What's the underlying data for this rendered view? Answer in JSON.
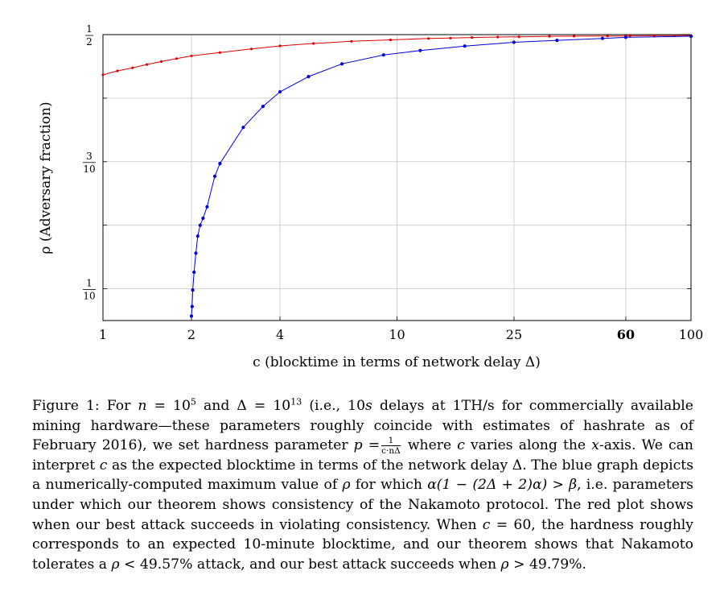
{
  "chart_data": {
    "type": "line",
    "xscale": "log",
    "xlim": [
      1,
      100
    ],
    "ylim": [
      0.05,
      0.5
    ],
    "xlabel": "c (blocktime in terms of network delay Δ)",
    "ylabel": "ρ (Adversary fraction)",
    "xticks": [
      {
        "value": 1,
        "label": "1",
        "bold": false
      },
      {
        "value": 2,
        "label": "2",
        "bold": false
      },
      {
        "value": 4,
        "label": "4",
        "bold": false
      },
      {
        "value": 10,
        "label": "10",
        "bold": false
      },
      {
        "value": 25,
        "label": "25",
        "bold": false
      },
      {
        "value": 60,
        "label": "60",
        "bold": true
      },
      {
        "value": 100,
        "label": "100",
        "bold": false
      }
    ],
    "ygrid": [
      0.1,
      0.2,
      0.3,
      0.4,
      0.5
    ],
    "yticks": [
      {
        "value": 0.5,
        "num": "1",
        "den": "2"
      },
      {
        "value": 0.3,
        "num": "3",
        "den": "10"
      },
      {
        "value": 0.1,
        "num": "1",
        "den": "10"
      }
    ],
    "grid": true,
    "series": [
      {
        "color": "#dd0000",
        "marker_size": 1.6,
        "x": [
          1,
          1.12,
          1.26,
          1.41,
          1.58,
          1.78,
          2.0,
          2.5,
          3.2,
          4.0,
          5.2,
          7.0,
          9.5,
          12.8,
          15.2,
          18.0,
          22.0,
          26.0,
          33.0,
          40.0,
          52.0,
          60.0,
          62.0,
          75.0,
          88.0,
          100.0
        ],
        "y": [
          0.4368,
          0.443,
          0.4478,
          0.453,
          0.4577,
          0.4622,
          0.4665,
          0.4718,
          0.4775,
          0.4822,
          0.486,
          0.4895,
          0.4918,
          0.4939,
          0.4946,
          0.4955,
          0.4962,
          0.4966,
          0.4973,
          0.4976,
          0.4979,
          0.4979,
          0.4981,
          0.4983,
          0.4985,
          0.4987
        ]
      },
      {
        "color": "#0000dd",
        "marker_size": 2.1,
        "x": [
          2.0,
          2.01,
          2.02,
          2.04,
          2.07,
          2.1,
          2.14,
          2.19,
          2.26,
          2.4,
          2.5,
          3.0,
          3.5,
          4.0,
          5.0,
          6.5,
          9.0,
          12.0,
          17.0,
          25.0,
          35.0,
          50.0,
          60.0,
          100.0
        ],
        "y": [
          0.057,
          0.072,
          0.098,
          0.126,
          0.156,
          0.183,
          0.2,
          0.211,
          0.229,
          0.277,
          0.297,
          0.354,
          0.387,
          0.41,
          0.434,
          0.454,
          0.468,
          0.475,
          0.482,
          0.488,
          0.491,
          0.494,
          0.4957,
          0.4975
        ]
      }
    ]
  },
  "caption": {
    "fig_label": "Figure 1:",
    "seg1": "For",
    "n_var": "n",
    "eq1": "= 10",
    "n_exp": "5",
    "seg2": "and Δ = 10",
    "d_exp": "13",
    "seg3": "(i.e., 10",
    "s_var": "s",
    "seg4": "delays at 1TH/s for commercially available mining hardware—these parameters roughly coincide with estimates of hashrate as of February 2016), we set hardness parameter",
    "p_var": "p",
    "eq2": "=",
    "p_num": "1",
    "p_den": "c·nΔ",
    "seg5": "where",
    "c_var1": "c",
    "seg6": "varies along the",
    "x_var": "x",
    "seg7": "-axis. We can interpret",
    "c_var2": "c",
    "seg8": "as the expected blocktime in terms of the network delay Δ. The blue graph depicts a numerically-computed maximum value of",
    "rho1": "ρ",
    "seg9": "for which",
    "ineq": "α(1 − (2Δ + 2)α) > β",
    "seg10": ", i.e. parameters under which our theorem shows consistency of the Nakamoto protocol. The red plot shows when our best attack succeeds in violating consistency. When",
    "c_var3": "c",
    "seg11": "= 60, the hardness roughly corresponds to an expected 10-minute blocktime, and our theorem shows that Nakamoto tolerates a",
    "rho2": "ρ",
    "seg12": "< 49.57% attack, and our best attack succeeds when",
    "rho3": "ρ",
    "seg13": "> 49.79%."
  }
}
